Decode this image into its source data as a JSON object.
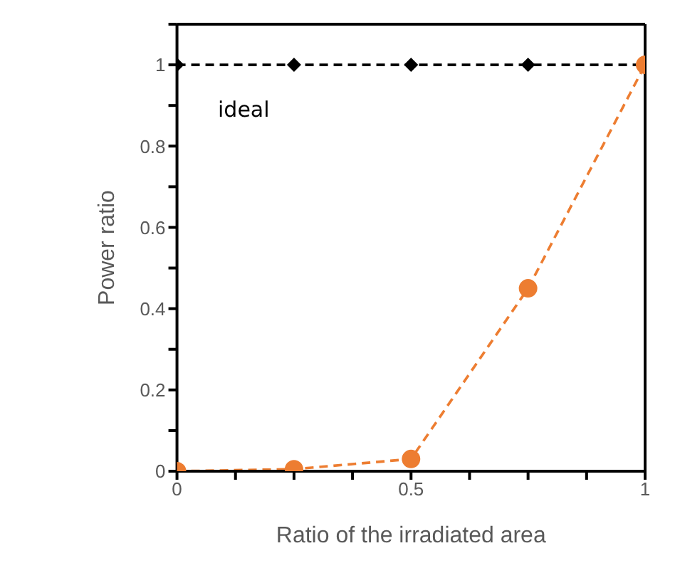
{
  "chart_data": {
    "type": "line",
    "xlabel": "Ratio of the irradiated area",
    "ylabel": "Power ratio",
    "xlim": [
      0,
      1
    ],
    "xticks": [
      0,
      {
        "value": 0.125,
        "label": null
      },
      {
        "value": 0.25,
        "label": null
      },
      {
        "value": 0.375,
        "label": null
      },
      0.5,
      {
        "value": 0.625,
        "label": null
      },
      {
        "value": 0.75,
        "label": null
      },
      {
        "value": 0.875,
        "label": null
      },
      1
    ],
    "ylim": [
      0,
      1.1
    ],
    "yticks": [
      0,
      {
        "value": 0.1,
        "label": null
      },
      0.2,
      {
        "value": 0.3,
        "label": null
      },
      0.4,
      {
        "value": 0.5,
        "label": null
      },
      0.6,
      {
        "value": 0.7,
        "label": null
      },
      0.8,
      {
        "value": 0.9,
        "label": null
      },
      1,
      {
        "value": 1.1,
        "label": null
      }
    ],
    "grid": false,
    "legend": "top left",
    "series": [
      {
        "name": "ideal",
        "color": "#000000",
        "x": [
          0,
          0.25,
          0.5,
          0.75,
          1
        ],
        "values": [
          1,
          1,
          1,
          1,
          1
        ],
        "marker": "diamond",
        "line_style": "dashed"
      },
      {
        "color": "#ed7d31",
        "x": [
          0,
          0.25,
          0.5,
          0.75,
          1
        ],
        "values": [
          0,
          0.005,
          0.03,
          0.45,
          1
        ],
        "marker": "circle",
        "line_style": "dashed"
      }
    ]
  }
}
